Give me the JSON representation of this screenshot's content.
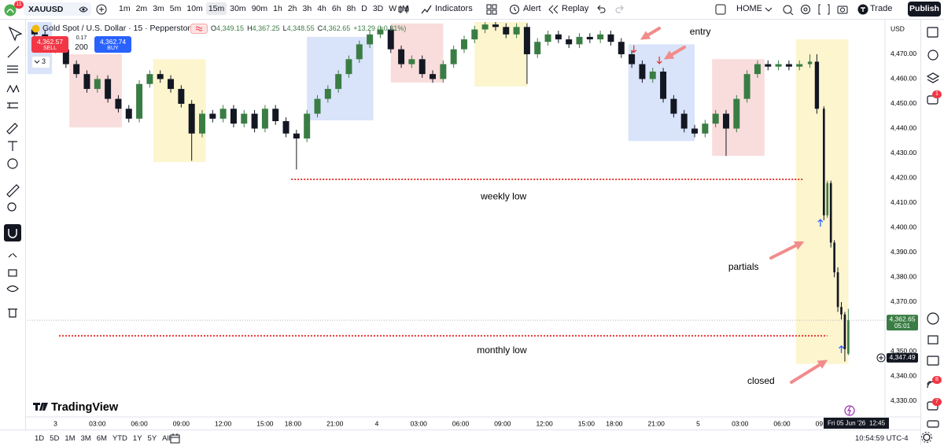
{
  "toolbar": {
    "badge": "11",
    "symbol": "XAUUSD",
    "timeframes": [
      "1m",
      "2m",
      "3m",
      "5m",
      "10m",
      "15m",
      "30m",
      "90m",
      "1h",
      "2h",
      "3h",
      "4h",
      "6h",
      "8h",
      "D",
      "3D",
      "W",
      "M"
    ],
    "active": 5,
    "indicators": "Indicators",
    "alert": "Alert",
    "replay": "Replay",
    "layout": "HOME",
    "trade": "Trade",
    "publish": "Publish"
  },
  "legend": {
    "title": "Gold Spot / U.S. Dollar · 15 · Pepperstone",
    "ohlc": [
      {
        "key": "O",
        "value": "4,349.15"
      },
      {
        "key": "H",
        "value": "4,367.25"
      },
      {
        "key": "L",
        "value": "4,348.55"
      },
      {
        "key": "C",
        "value": "4,362.65"
      }
    ],
    "change": "+13.29 (+0.31%)"
  },
  "order": {
    "sell_price": "4,362.57",
    "sell": "SELL",
    "spread": "0.17",
    "quantity": "200",
    "buy_price": "4,362.74",
    "buy": "BUY"
  },
  "collapse_count": "3",
  "brand": "TradingView",
  "sidebar_badges": [
    "1",
    "8",
    "7"
  ],
  "bottom_bar": {
    "ranges": [
      "1D",
      "5D",
      "1M",
      "3M",
      "6M",
      "YTD",
      "1Y",
      "5Y",
      "All"
    ],
    "clock": "10:54:59 UTC-4"
  },
  "chart_data": {
    "type": "candlestick",
    "up_color": "#3a7d44",
    "down_color": "#131722",
    "x": [
      -6,
      -3,
      0,
      3,
      6,
      9,
      12,
      15,
      18,
      21,
      24,
      27,
      30,
      33,
      36,
      39,
      42,
      45,
      48,
      51,
      54,
      57,
      60,
      63,
      66,
      69,
      72,
      75,
      78,
      81,
      84,
      87,
      90,
      93,
      96,
      99,
      102,
      105,
      108,
      111,
      114,
      117,
      120,
      123,
      126,
      129,
      132,
      135,
      138,
      141,
      144,
      147,
      150,
      153,
      156,
      159,
      162,
      165,
      168,
      171,
      174,
      177,
      180,
      183,
      186,
      189,
      192,
      195,
      198,
      201,
      204,
      207,
      210,
      213,
      216,
      218,
      220,
      221,
      222,
      223,
      224,
      225,
      226,
      227
    ],
    "open": [
      4480,
      4478,
      4475,
      4472,
      4466,
      4462,
      4456,
      4460,
      4452,
      4448,
      4444,
      4458,
      4462,
      4460,
      4456,
      4450,
      4438,
      4446,
      4444,
      4448,
      4442,
      4446,
      4440,
      4448,
      4443,
      4438,
      4436,
      4446,
      4452,
      4456,
      4462,
      4468,
      4474,
      4478,
      4480,
      4472,
      4466,
      4468,
      4462,
      4460,
      4466,
      4472,
      4476,
      4480,
      4482,
      4481,
      4478,
      4481,
      4470,
      4475,
      4478,
      4476,
      4474,
      4477,
      4476,
      4478,
      4475,
      4470,
      4466,
      4460,
      4463,
      4452,
      4446,
      4440,
      4438,
      4442,
      4446,
      4440,
      4452,
      4462,
      4466,
      4465,
      4466,
      4465,
      4466,
      4467,
      4448,
      4405,
      4418,
      4394,
      4382,
      4368,
      4365,
      4349.15
    ],
    "high": [
      4481.5,
      4479.5,
      4476.5,
      4473.5,
      4467.5,
      4463.5,
      4461.5,
      4461.5,
      4453.5,
      4449.5,
      4459.5,
      4463.5,
      4463.5,
      4461.5,
      4457.5,
      4451.5,
      4447.5,
      4447.5,
      4449.5,
      4449.5,
      4447.5,
      4447.5,
      4449.5,
      4449.5,
      4444.5,
      4439.5,
      4447.5,
      4453.5,
      4457.5,
      4463.5,
      4469.5,
      4475.5,
      4479.5,
      4481.5,
      4481.5,
      4473.5,
      4469.5,
      4469.5,
      4463.5,
      4467.5,
      4473.5,
      4477.5,
      4481.5,
      4483.5,
      4483.5,
      4482.5,
      4482.5,
      4482.5,
      4476.5,
      4479.5,
      4479.5,
      4477.5,
      4478.5,
      4478.5,
      4479.5,
      4479.5,
      4476.5,
      4471.5,
      4467.5,
      4464.5,
      4464.5,
      4453.5,
      4447.5,
      4441.5,
      4443.5,
      4447.5,
      4447.5,
      4453.5,
      4463.5,
      4467.5,
      4467.5,
      4467.5,
      4467.5,
      4467.5,
      4470,
      4470,
      4449,
      4419,
      4419,
      4395,
      4384,
      4370,
      4366,
      4367.25
    ],
    "low": [
      4476.5,
      4473.5,
      4470.5,
      4464.5,
      4460.5,
      4454.5,
      4454.5,
      4450.5,
      4446.5,
      4442.5,
      4442.5,
      4456.5,
      4458.5,
      4454.5,
      4448.5,
      4427,
      4436.5,
      4442.5,
      4442.5,
      4440.5,
      4440.5,
      4438.5,
      4438.5,
      4441.5,
      4436.5,
      4423.5,
      4434.5,
      4444.5,
      4450.5,
      4454.5,
      4460.5,
      4466.5,
      4472.5,
      4476.5,
      4470.5,
      4464.5,
      4464.5,
      4460.5,
      4458.5,
      4458.5,
      4464.5,
      4470.5,
      4474.5,
      4478.5,
      4479.5,
      4476.5,
      4476.5,
      4458,
      4468.5,
      4473.5,
      4474.5,
      4472.5,
      4472.5,
      4474.5,
      4474.5,
      4473.5,
      4468.5,
      4464.5,
      4458.5,
      4458.5,
      4450.5,
      4444.5,
      4438.5,
      4436.5,
      4436.5,
      4440.5,
      4429,
      4438.5,
      4450.5,
      4460.5,
      4463.5,
      4463.5,
      4463.5,
      4463.5,
      4464.5,
      4446,
      4403,
      4404,
      4392,
      4380,
      4366,
      4363,
      4346,
      4348.55
    ],
    "close": [
      4478,
      4475,
      4472,
      4466,
      4462,
      4456,
      4460,
      4452,
      4448,
      4444,
      4458,
      4462,
      4460,
      4456,
      4450,
      4438,
      4446,
      4444,
      4448,
      4442,
      4446,
      4440,
      4448,
      4443,
      4438,
      4436,
      4446,
      4452,
      4456,
      4462,
      4468,
      4474,
      4478,
      4480,
      4472,
      4466,
      4468,
      4462,
      4460,
      4466,
      4472,
      4476,
      4480,
      4482,
      4481,
      4478,
      4481,
      4470,
      4475,
      4478,
      4476,
      4474,
      4477,
      4476,
      4478,
      4475,
      4470,
      4466,
      4460,
      4463,
      4452,
      4446,
      4440,
      4438,
      4442,
      4446,
      4440,
      4452,
      4462,
      4466,
      4465,
      4466,
      4465,
      4466,
      4467,
      4448,
      4405,
      4418,
      4394,
      4382,
      4368,
      4365,
      4351,
      4362.65
    ],
    "xlim": [
      -8,
      237.5
    ],
    "xticks": [
      {
        "value": 0,
        "label": "3"
      },
      {
        "value": 12,
        "label": "03:00"
      },
      {
        "value": 24,
        "label": "06:00"
      },
      {
        "value": 36,
        "label": "09:00"
      },
      {
        "value": 48,
        "label": "12:00"
      },
      {
        "value": 60,
        "label": "15:00"
      },
      {
        "value": 68,
        "label": "18:00"
      },
      {
        "value": 80,
        "label": "21:00"
      },
      {
        "value": 92,
        "label": "4"
      },
      {
        "value": 104,
        "label": "03:00"
      },
      {
        "value": 116,
        "label": "06:00"
      },
      {
        "value": 128,
        "label": "09:00"
      },
      {
        "value": 140,
        "label": "12:00"
      },
      {
        "value": 152,
        "label": "15:00"
      },
      {
        "value": 160,
        "label": "18:00"
      },
      {
        "value": 172,
        "label": "21:00"
      },
      {
        "value": 184,
        "label": "5"
      },
      {
        "value": 196,
        "label": "03:00"
      },
      {
        "value": 208,
        "label": "06:00"
      },
      {
        "value": 220,
        "label": "09:00"
      }
    ],
    "ylim": [
      4323.65,
      4483
    ],
    "yticks": [
      {
        "value": 4470,
        "label": "4,470.00"
      },
      {
        "value": 4460,
        "label": "4,460.00"
      },
      {
        "value": 4450,
        "label": "4,450.00"
      },
      {
        "value": 4440,
        "label": "4,440.00"
      },
      {
        "value": 4430,
        "label": "4,430.00"
      },
      {
        "value": 4420,
        "label": "4,420.00"
      },
      {
        "value": 4410,
        "label": "4,410.00"
      },
      {
        "value": 4400,
        "label": "4,400.00"
      },
      {
        "value": 4390,
        "label": "4,390.00"
      },
      {
        "value": 4380,
        "label": "4,380.00"
      },
      {
        "value": 4370,
        "label": "4,370.00"
      },
      {
        "value": 4360,
        "label": "4,360.00"
      },
      {
        "value": 4350,
        "label": "4,350.00"
      },
      {
        "value": 4340,
        "label": "4,340.00"
      },
      {
        "value": 4330,
        "label": "4,330.00"
      }
    ],
    "y_axis_title": "USD",
    "grid": false,
    "zones": [
      {
        "x": [
          -8,
          -1
        ],
        "y": [
          4483,
          4462
        ],
        "color": "#cfdcf7"
      },
      {
        "x": [
          4,
          19
        ],
        "y": [
          4470,
          4440.5
        ],
        "color": "#f8d3d3"
      },
      {
        "x": [
          28,
          43
        ],
        "y": [
          4468,
          4426.5
        ],
        "color": "#fbf3c2"
      },
      {
        "x": [
          72,
          91
        ],
        "y": [
          4477,
          4443.3
        ],
        "color": "#cfdcf7"
      },
      {
        "x": [
          96,
          111
        ],
        "y": [
          4482.4,
          4458.6
        ],
        "color": "#f8d3d3"
      },
      {
        "x": [
          120,
          135
        ],
        "y": [
          4483,
          4457
        ],
        "color": "#fbf3c2"
      },
      {
        "x": [
          164,
          183
        ],
        "y": [
          4474,
          4435
        ],
        "color": "#cfdcf7"
      },
      {
        "x": [
          188,
          203
        ],
        "y": [
          4468,
          4429
        ],
        "color": "#f8d3d3"
      },
      {
        "x": [
          212,
          227
        ],
        "y": [
          4476,
          4345
        ],
        "color": "#fbf3c2"
      }
    ],
    "levels": [
      {
        "label": "weekly low",
        "value": 4419.5,
        "x": [
          67.5,
          214
        ],
        "label_x": 128.3,
        "label_y": 4412.5,
        "color": "#e53935"
      },
      {
        "label": "monthly low",
        "value": 4356.4,
        "x": [
          1,
          221
        ],
        "label_x": 127.8,
        "label_y": 4350.3,
        "color": "#e53935"
      }
    ],
    "annotations": [
      {
        "text": "entry",
        "x": 184.6,
        "y": 4479
      },
      {
        "text": "partials",
        "x": 197,
        "y": 4384
      },
      {
        "text": "closed",
        "x": 202,
        "y": 4338
      }
    ],
    "markers": [
      {
        "x": 165.6,
        "y": 4472,
        "direction": "down",
        "color": "#e53935"
      },
      {
        "x": 172.9,
        "y": 4467.5,
        "direction": "down",
        "color": "#e53935"
      },
      {
        "x": 219,
        "y": 4402,
        "direction": "up",
        "color": "#2962ff"
      },
      {
        "x": 225,
        "y": 4351,
        "direction": "up",
        "color": "#2962ff"
      }
    ],
    "last_price": {
      "value": 4362.65,
      "label": "4,362.65",
      "countdown": "05:01",
      "color": "#3a7d44"
    },
    "crosshair": {
      "value": 4347.49,
      "label": "4,347.49"
    },
    "date_label": "Fri 05 Jun '26",
    "time_label": "12:45"
  }
}
